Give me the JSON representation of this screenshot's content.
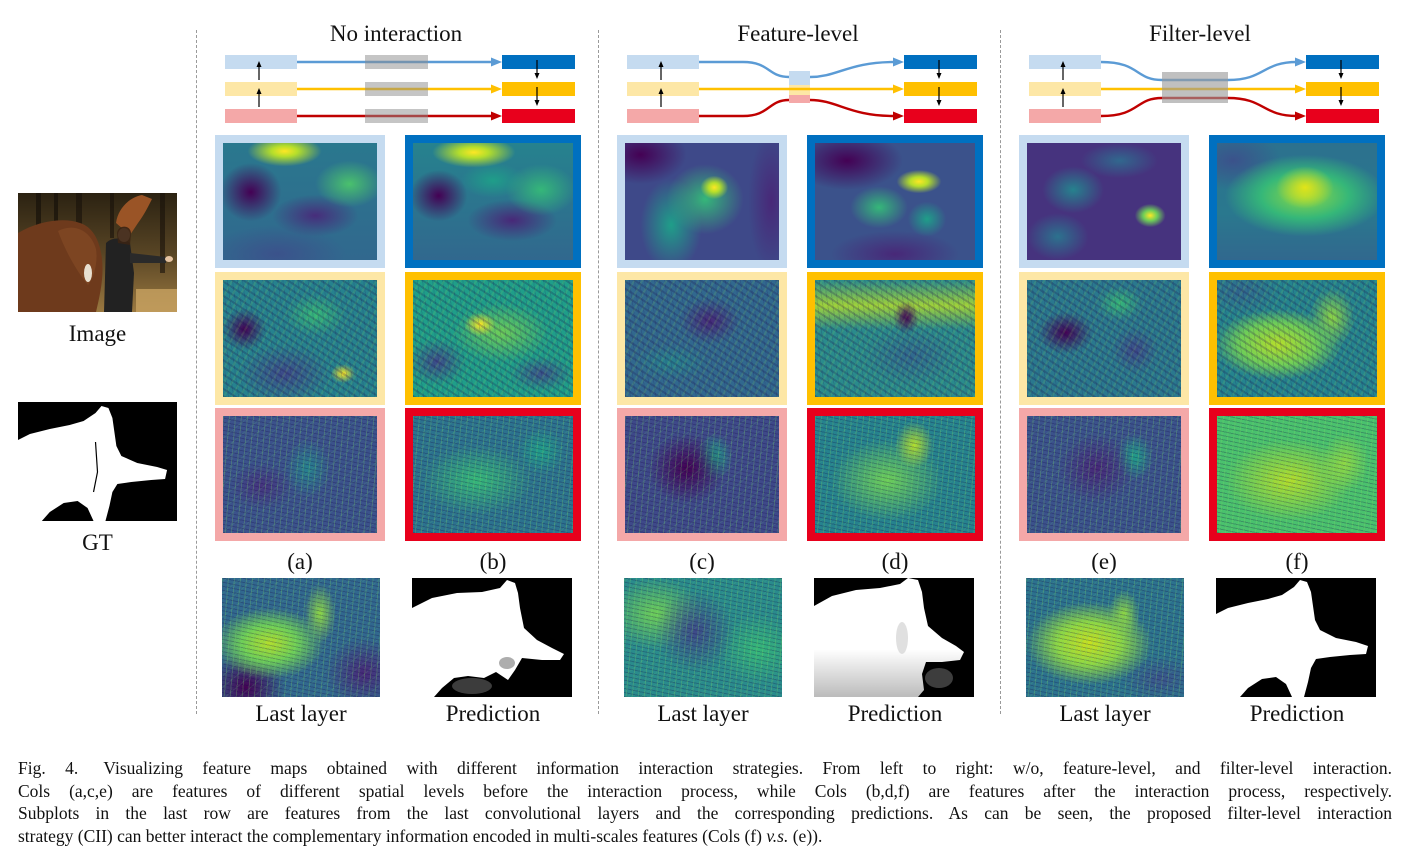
{
  "left": {
    "image_label": "Image",
    "gt_label": "GT"
  },
  "sections": [
    {
      "title": "No interaction",
      "col_labels": [
        "(a)",
        "(b)"
      ],
      "bottom_labels": [
        "Last layer",
        "Prediction"
      ]
    },
    {
      "title": "Feature-level",
      "col_labels": [
        "(c)",
        "(d)"
      ],
      "bottom_labels": [
        "Last layer",
        "Prediction"
      ]
    },
    {
      "title": "Filter-level",
      "col_labels": [
        "(e)",
        "(f)"
      ],
      "bottom_labels": [
        "Last layer",
        "Prediction"
      ]
    }
  ],
  "colors": {
    "before_levels": [
      "#c5dbf0",
      "#fde7a6",
      "#f4a8a8"
    ],
    "after_levels": [
      "#0070c0",
      "#ffc000",
      "#e8001c"
    ],
    "flow_lines": [
      "#5b9bd5",
      "#ffc000",
      "#c00000"
    ]
  },
  "caption": {
    "fig_label": "Fig. 4.",
    "line1": "Visualizing feature maps obtained with different information interaction strategies. From left to right: w/o, feature-level, and filter-level interaction.",
    "line2": "Cols (a,c,e) are features of different spatial levels before the interaction process, while Cols (b,d,f) are features after the interaction process, respectively.",
    "line3": "Subplots in the last row are features from the last convolutional layers and the corresponding predictions. As can be seen, the proposed filter-level interaction",
    "line4_pre": "strategy (CII) can better interact the complementary information encoded in multi-scales features (Cols (f)",
    "line4_italic": "v.s.",
    "line4_post": "(e))."
  }
}
